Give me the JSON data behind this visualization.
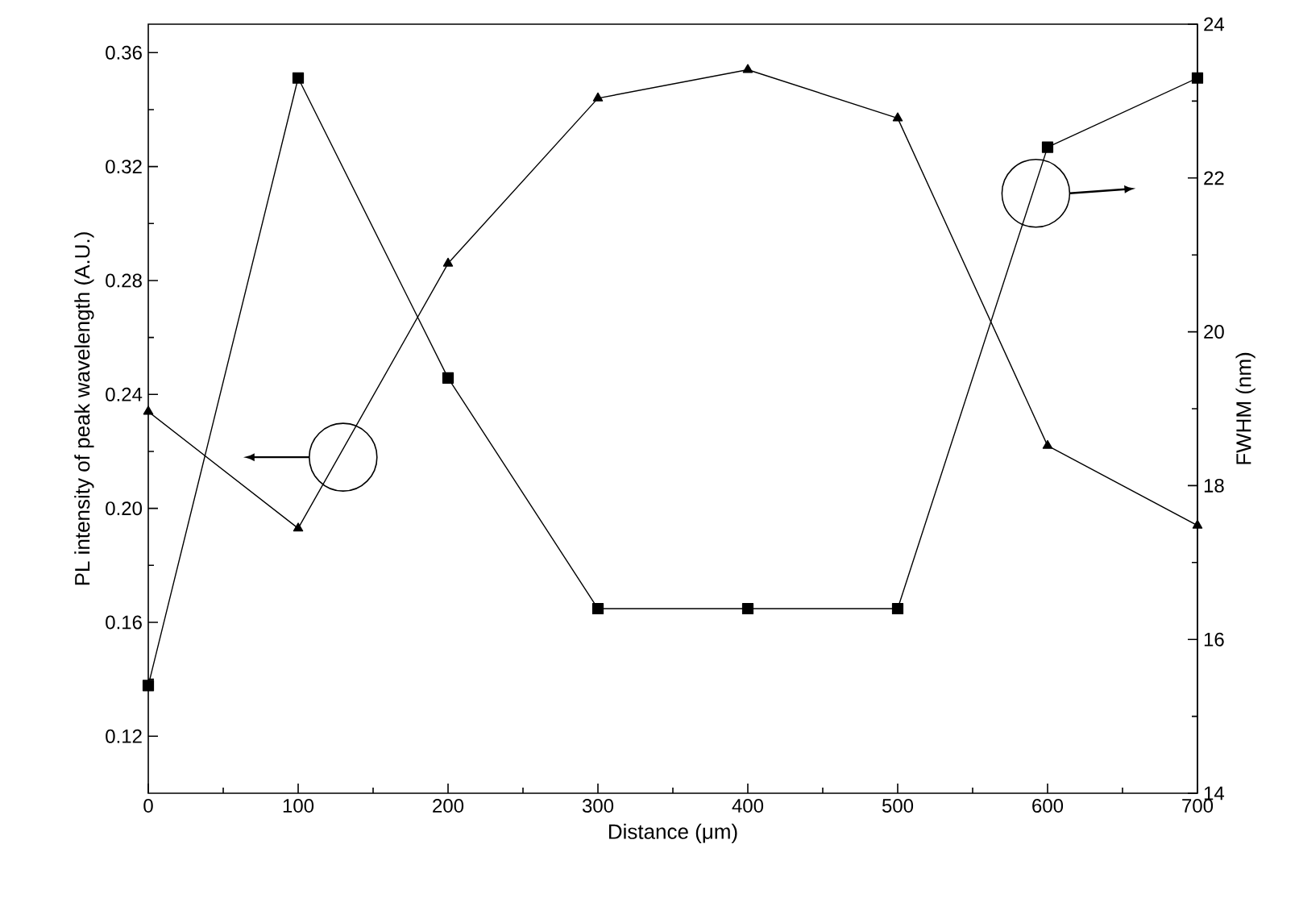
{
  "chart_data": {
    "type": "line",
    "xlabel": "Distance (μm)",
    "ylabel": "PL intensity of peak wavelength (A.U.)",
    "y2label": "FWHM (nm)",
    "x": [
      0,
      100,
      200,
      300,
      400,
      500,
      600,
      700
    ],
    "series": [
      {
        "color": "#000000",
        "marker": "triangle",
        "values": [
          0.234,
          0.193,
          0.286,
          0.344,
          0.354,
          0.337,
          0.222,
          0.194
        ]
      },
      {
        "color": "#000000",
        "marker": "square",
        "axis": "y2",
        "values": [
          15.4,
          23.3,
          19.4,
          16.4,
          16.4,
          16.4,
          22.4,
          23.3
        ]
      }
    ],
    "xlim": [
      0,
      700
    ],
    "xticks": [
      0,
      100,
      200,
      300,
      400,
      500,
      600,
      700
    ],
    "ylim": [
      0.1,
      0.37
    ],
    "yticks": [
      0.12,
      0.16,
      {
        "value": 0.2,
        "label": "0.20"
      },
      0.24,
      0.28,
      0.32,
      0.36
    ],
    "y2lim": [
      14,
      24
    ],
    "y2ticks": [
      14,
      16,
      18,
      20,
      22,
      24
    ],
    "line_style": "solid"
  }
}
